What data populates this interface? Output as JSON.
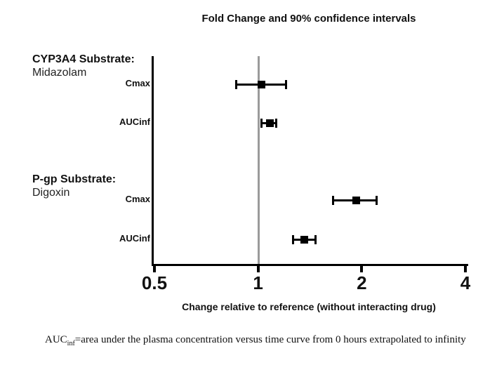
{
  "title": "Fold Change and 90% confidence intervals",
  "xlabel": "Change relative to reference (without interacting drug)",
  "footnote": {
    "prefix": "AUC",
    "subscript": "inf",
    "rest": "=area under the plasma concentration versus time curve from 0 hours extrapolated to infinity"
  },
  "colors": {
    "marker": "#000000",
    "axis": "#000000",
    "reference_line": "#9b9b9b",
    "background": "#ffffff"
  },
  "chart_data": {
    "type": "scatter",
    "subtype": "forest-plot",
    "x_scale": "log2",
    "xlim": [
      0.5,
      4
    ],
    "x_ticks": [
      0.5,
      1,
      2,
      4
    ],
    "x_tick_labels": [
      "0.5",
      "1",
      "2",
      "4"
    ],
    "reference_line_x": 1,
    "grid": false,
    "legend": false,
    "error_bar_type": "90% confidence interval",
    "groups": [
      {
        "header": "CYP3A4 Substrate:",
        "name": "Midazolam",
        "rows": [
          {
            "label": "Cmax",
            "value": 1.02,
            "ci_low": 0.86,
            "ci_high": 1.21
          },
          {
            "label": "AUCinf",
            "value": 1.08,
            "ci_low": 1.02,
            "ci_high": 1.13
          }
        ]
      },
      {
        "header": "P-gp Substrate:",
        "name": "Digoxin",
        "rows": [
          {
            "label": "Cmax",
            "value": 1.92,
            "ci_low": 1.65,
            "ci_high": 2.21
          },
          {
            "label": "AUCinf",
            "value": 1.36,
            "ci_low": 1.26,
            "ci_high": 1.47
          }
        ]
      }
    ]
  }
}
